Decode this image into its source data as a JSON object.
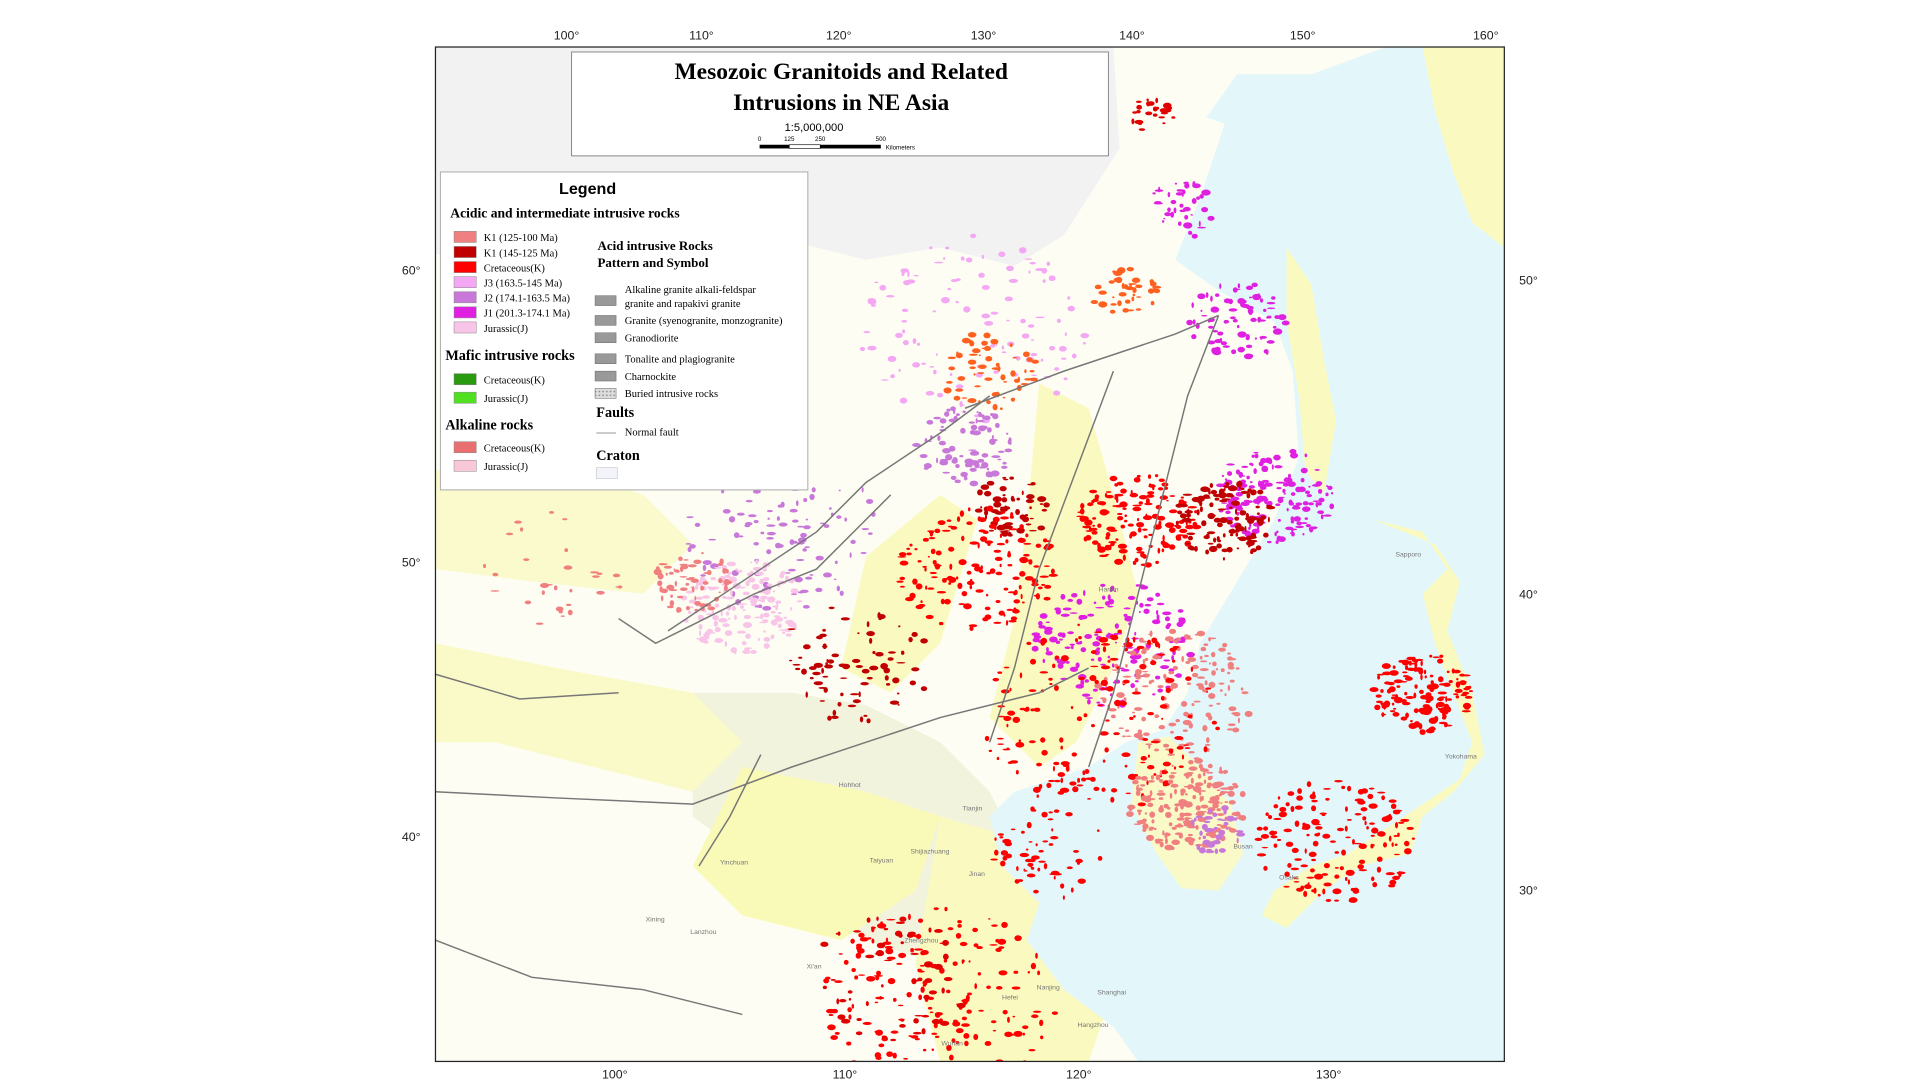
{
  "map": {
    "title_box": {
      "line1": "Mesozoic Granitoids and Related",
      "line2": "Intrusions in NE Asia",
      "scale": "1:5,000,000",
      "scalebar_labels": [
        "0",
        "125",
        "250",
        "500"
      ],
      "unit": "Kilometers"
    },
    "legend": {
      "heading": "Legend",
      "groups": [
        {
          "title": "Acidic and intermediate intrusive rocks",
          "items": [
            {
              "label": "K1 (125-100 Ma)",
              "color": "#f08080"
            },
            {
              "label": "K1 (145-125 Ma)",
              "color": "#c00000"
            },
            {
              "label": "Cretaceous(K)",
              "color": "#ff0000"
            },
            {
              "label": "J3 (163.5-145 Ma)",
              "color": "#f4a8f4"
            },
            {
              "label": "J2 (174.1-163.5 Ma)",
              "color": "#c878d8"
            },
            {
              "label": "J1 (201.3-174.1 Ma)",
              "color": "#e020e0"
            },
            {
              "label": "Jurassic(J)",
              "color": "#f8c4e8"
            }
          ]
        },
        {
          "title": "Mafic intrusive rocks",
          "items": [
            {
              "label": "Cretaceous(K)",
              "color": "#2a9a10"
            },
            {
              "label": "Jurassic(J)",
              "color": "#50e020"
            }
          ]
        },
        {
          "title": "Alkaline rocks",
          "items": [
            {
              "label": "Cretaceous(K)",
              "color": "#e87070"
            },
            {
              "label": "Jurassic(J)",
              "color": "#f8c8d8"
            }
          ]
        }
      ],
      "patterns": {
        "title1": "Acid intrusive Rocks",
        "title2": "Pattern and Symbol",
        "items": [
          [
            "Alkaline granite alkali-feldspar",
            "granite and rapakivi granite"
          ],
          [
            "Granite (syenogranite, monzogranite)"
          ],
          [
            "Granodiorite"
          ],
          [
            "Tonalite and plagiogranite"
          ],
          [
            "Charnockite"
          ],
          [
            "Buried intrusive rocks"
          ]
        ]
      },
      "faults": {
        "title": "Faults",
        "item": "Normal fault"
      },
      "craton": {
        "title": "Craton"
      }
    },
    "graticule": {
      "top": [
        "100°",
        "110°",
        "120°",
        "130°",
        "140°",
        "150°",
        "160°"
      ],
      "bottom": [
        "100°",
        "110°",
        "120°",
        "130°"
      ],
      "left": [
        "60°",
        "50°",
        "40°"
      ],
      "right": [
        "50°",
        "40°",
        "30°"
      ]
    },
    "cities": [
      "Sapporo",
      "Harbin",
      "Hohhot",
      "Tianjin",
      "Shijiazhuang",
      "Taiyuan",
      "Yinchuan",
      "Jinan",
      "Xining",
      "Lanzhou",
      "Zhengzhou",
      "Xi'an",
      "Nanjing",
      "Hefei",
      "Shanghai",
      "Hangzhou",
      "Wuhan",
      "Busan",
      "Yokohama",
      "Osaka"
    ]
  }
}
